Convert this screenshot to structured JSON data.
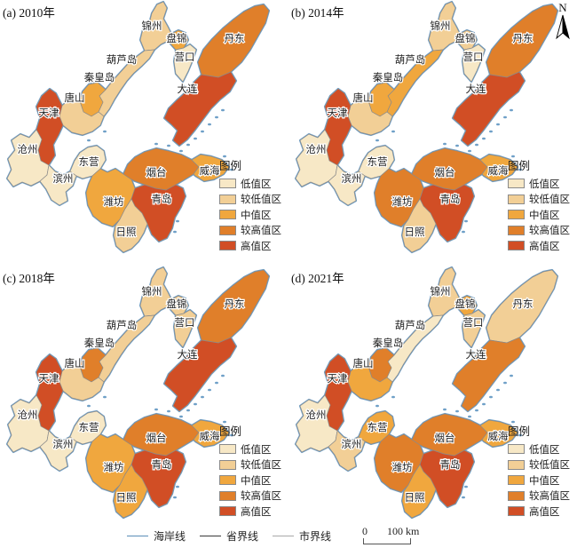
{
  "figure": {
    "north_label": "N",
    "scale_bar": {
      "start": "0",
      "end": "100 km"
    }
  },
  "legend": {
    "title": "图例",
    "items": [
      {
        "label": "低值区",
        "color": "#F7E8C6"
      },
      {
        "label": "较低值区",
        "color": "#F2CF96"
      },
      {
        "label": "中值区",
        "color": "#F0A73E"
      },
      {
        "label": "较高值区",
        "color": "#E07F2A"
      },
      {
        "label": "高值区",
        "color": "#D14E25"
      }
    ]
  },
  "line_legend": [
    {
      "label": "海岸线",
      "color": "#5B8DB8",
      "thickness": 1
    },
    {
      "label": "省界线",
      "color": "#3A3A3A",
      "thickness": 1.4
    },
    {
      "label": "市界线",
      "color": "#A8A8A8",
      "thickness": 1
    }
  ],
  "cities": [
    {
      "id": "jinzhou",
      "name": "锦州"
    },
    {
      "id": "panjin",
      "name": "盘锦"
    },
    {
      "id": "yingkou",
      "name": "营口"
    },
    {
      "id": "dandong",
      "name": "丹东"
    },
    {
      "id": "dalian",
      "name": "大连"
    },
    {
      "id": "huludao",
      "name": "葫芦岛"
    },
    {
      "id": "qinhuangdao",
      "name": "秦皇岛"
    },
    {
      "id": "tangshan",
      "name": "唐山"
    },
    {
      "id": "tianjin",
      "name": "天津"
    },
    {
      "id": "cangzhou",
      "name": "沧州"
    },
    {
      "id": "dongying",
      "name": "东营"
    },
    {
      "id": "binzhou",
      "name": "滨州"
    },
    {
      "id": "weifang",
      "name": "潍坊"
    },
    {
      "id": "yantai",
      "name": "烟台"
    },
    {
      "id": "weihai",
      "name": "威海"
    },
    {
      "id": "qingdao",
      "name": "青岛"
    },
    {
      "id": "rizhao",
      "name": "日照"
    }
  ],
  "panels": [
    {
      "id": "a",
      "label": "(a) 2010年",
      "categories": {
        "jinzhou": "较低值区",
        "panjin": "中值区",
        "yingkou": "低值区",
        "dandong": "较高值区",
        "dalian": "高值区",
        "huludao": "较低值区",
        "qinhuangdao": "中值区",
        "tangshan": "较低值区",
        "tianjin": "高值区",
        "cangzhou": "低值区",
        "dongying": "低值区",
        "binzhou": "低值区",
        "weifang": "中值区",
        "yantai": "较高值区",
        "weihai": "中值区",
        "qingdao": "高值区",
        "rizhao": "较低值区"
      }
    },
    {
      "id": "b",
      "label": "(b) 2014年",
      "categories": {
        "jinzhou": "较低值区",
        "panjin": "较低值区",
        "yingkou": "低值区",
        "dandong": "较高值区",
        "dalian": "高值区",
        "huludao": "中值区",
        "qinhuangdao": "中值区",
        "tangshan": "较低值区",
        "tianjin": "高值区",
        "cangzhou": "低值区",
        "dongying": "低值区",
        "binzhou": "低值区",
        "weifang": "较高值区",
        "yantai": "较高值区",
        "weihai": "中值区",
        "qingdao": "高值区",
        "rizhao": "较低值区"
      }
    },
    {
      "id": "c",
      "label": "(c) 2018年",
      "categories": {
        "jinzhou": "较低值区",
        "panjin": "较低值区",
        "yingkou": "较低值区",
        "dandong": "较高值区",
        "dalian": "高值区",
        "huludao": "较低值区",
        "qinhuangdao": "较高值区",
        "tangshan": "较低值区",
        "tianjin": "高值区",
        "cangzhou": "低值区",
        "dongying": "低值区",
        "binzhou": "低值区",
        "weifang": "中值区",
        "yantai": "较高值区",
        "weihai": "中值区",
        "qingdao": "高值区",
        "rizhao": "中值区"
      }
    },
    {
      "id": "d",
      "label": "(d) 2021年",
      "categories": {
        "jinzhou": "较低值区",
        "panjin": "中值区",
        "yingkou": "较低值区",
        "dandong": "较低值区",
        "dalian": "较高值区",
        "huludao": "低值区",
        "qinhuangdao": "较高值区",
        "tangshan": "中值区",
        "tianjin": "高值区",
        "cangzhou": "低值区",
        "dongying": "中值区",
        "binzhou": "较低值区",
        "weifang": "较高值区",
        "yantai": "较高值区",
        "weihai": "中值区",
        "qingdao": "高值区",
        "rizhao": "中值区"
      }
    }
  ]
}
